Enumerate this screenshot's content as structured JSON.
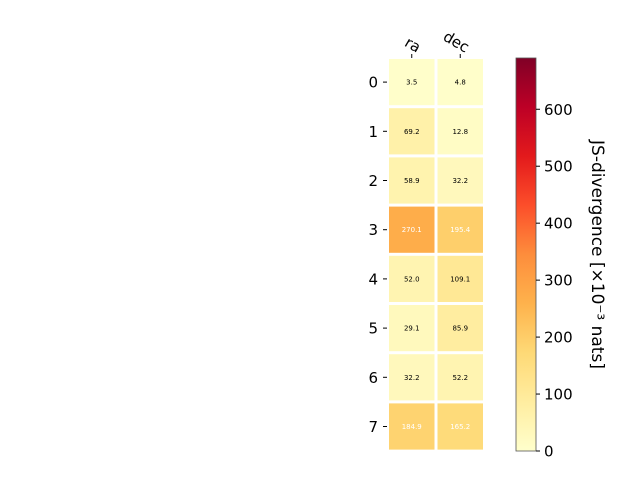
{
  "chart_data": {
    "type": "heatmap",
    "columns": [
      "ra",
      "dec"
    ],
    "rows": [
      "0",
      "1",
      "2",
      "3",
      "4",
      "5",
      "6",
      "7"
    ],
    "values": [
      [
        3.5,
        4.8
      ],
      [
        69.2,
        12.8
      ],
      [
        58.9,
        32.2
      ],
      [
        270.1,
        195.4
      ],
      [
        52.0,
        109.1
      ],
      [
        29.1,
        85.9
      ],
      [
        32.2,
        52.2
      ],
      [
        184.9,
        165.2
      ]
    ],
    "cell_labels": [
      [
        "3.5",
        "4.8"
      ],
      [
        "69.2",
        "12.8"
      ],
      [
        "58.9",
        "32.2"
      ],
      [
        "270.1",
        "195.4"
      ],
      [
        "52.0",
        "109.1"
      ],
      [
        "29.1",
        "85.9"
      ],
      [
        "32.2",
        "52.2"
      ],
      [
        "184.9",
        "165.2"
      ]
    ],
    "colorbar": {
      "label": "JS-divergence [×10⁻³ nats]",
      "range": [
        0,
        690
      ],
      "ticks": [
        0,
        100,
        200,
        300,
        400,
        500,
        600
      ],
      "tick_labels": [
        "0",
        "100",
        "200",
        "300",
        "400",
        "500",
        "600"
      ],
      "colormap": "YlOrRd"
    },
    "label_color_threshold": 150,
    "colors": {
      "light_text": "#ffffff",
      "dark_text": "#000000",
      "cell_border": "#ffffff"
    }
  }
}
